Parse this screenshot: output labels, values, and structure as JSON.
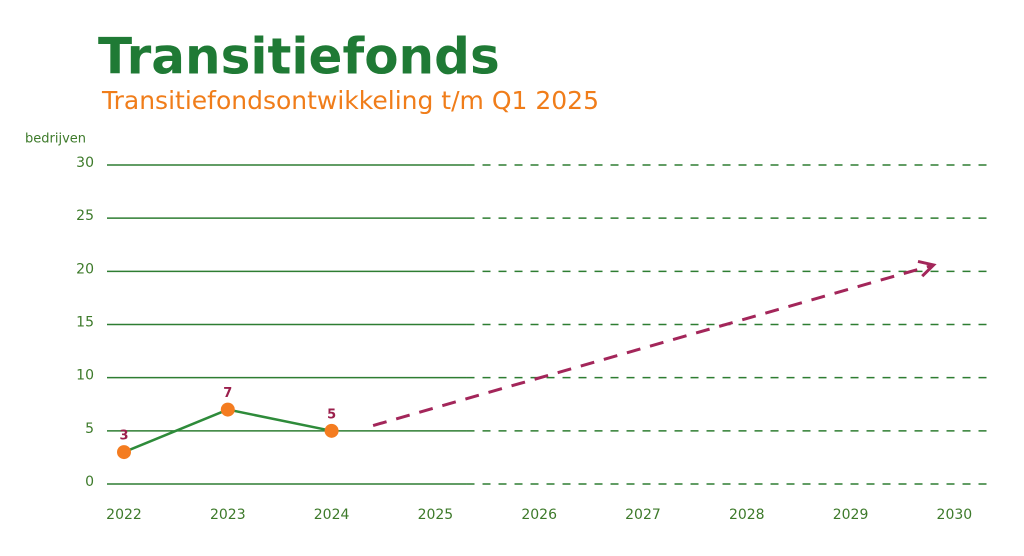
{
  "chart_data": {
    "type": "line",
    "title": "Transitiefonds",
    "subtitle": "Transitiefondsontwikkeling t/m Q1 2025",
    "y_label": "bedrijven",
    "x": [
      2022,
      2023,
      2024
    ],
    "series": [
      {
        "color": "#2e8b3a",
        "marker_color": "#f47c20",
        "label_color": "#9b1f4c",
        "values": [
          3,
          7,
          5
        ]
      }
    ],
    "projection": {
      "color": "#a3265a",
      "x": [
        2024.4,
        2029.8
      ],
      "values": [
        5.5,
        20.6
      ]
    },
    "xlim": [
      2021.83,
      2030
    ],
    "xticks": [
      2022,
      2023,
      2024,
      2025,
      2026,
      2027,
      2028,
      2029,
      2030
    ],
    "ylim": [
      0,
      30
    ],
    "yticks": [
      0,
      5,
      10,
      15,
      20,
      25,
      30
    ],
    "grid": true,
    "grid_color": "#2e7d32",
    "solid_grid_until": 2025.3
  }
}
